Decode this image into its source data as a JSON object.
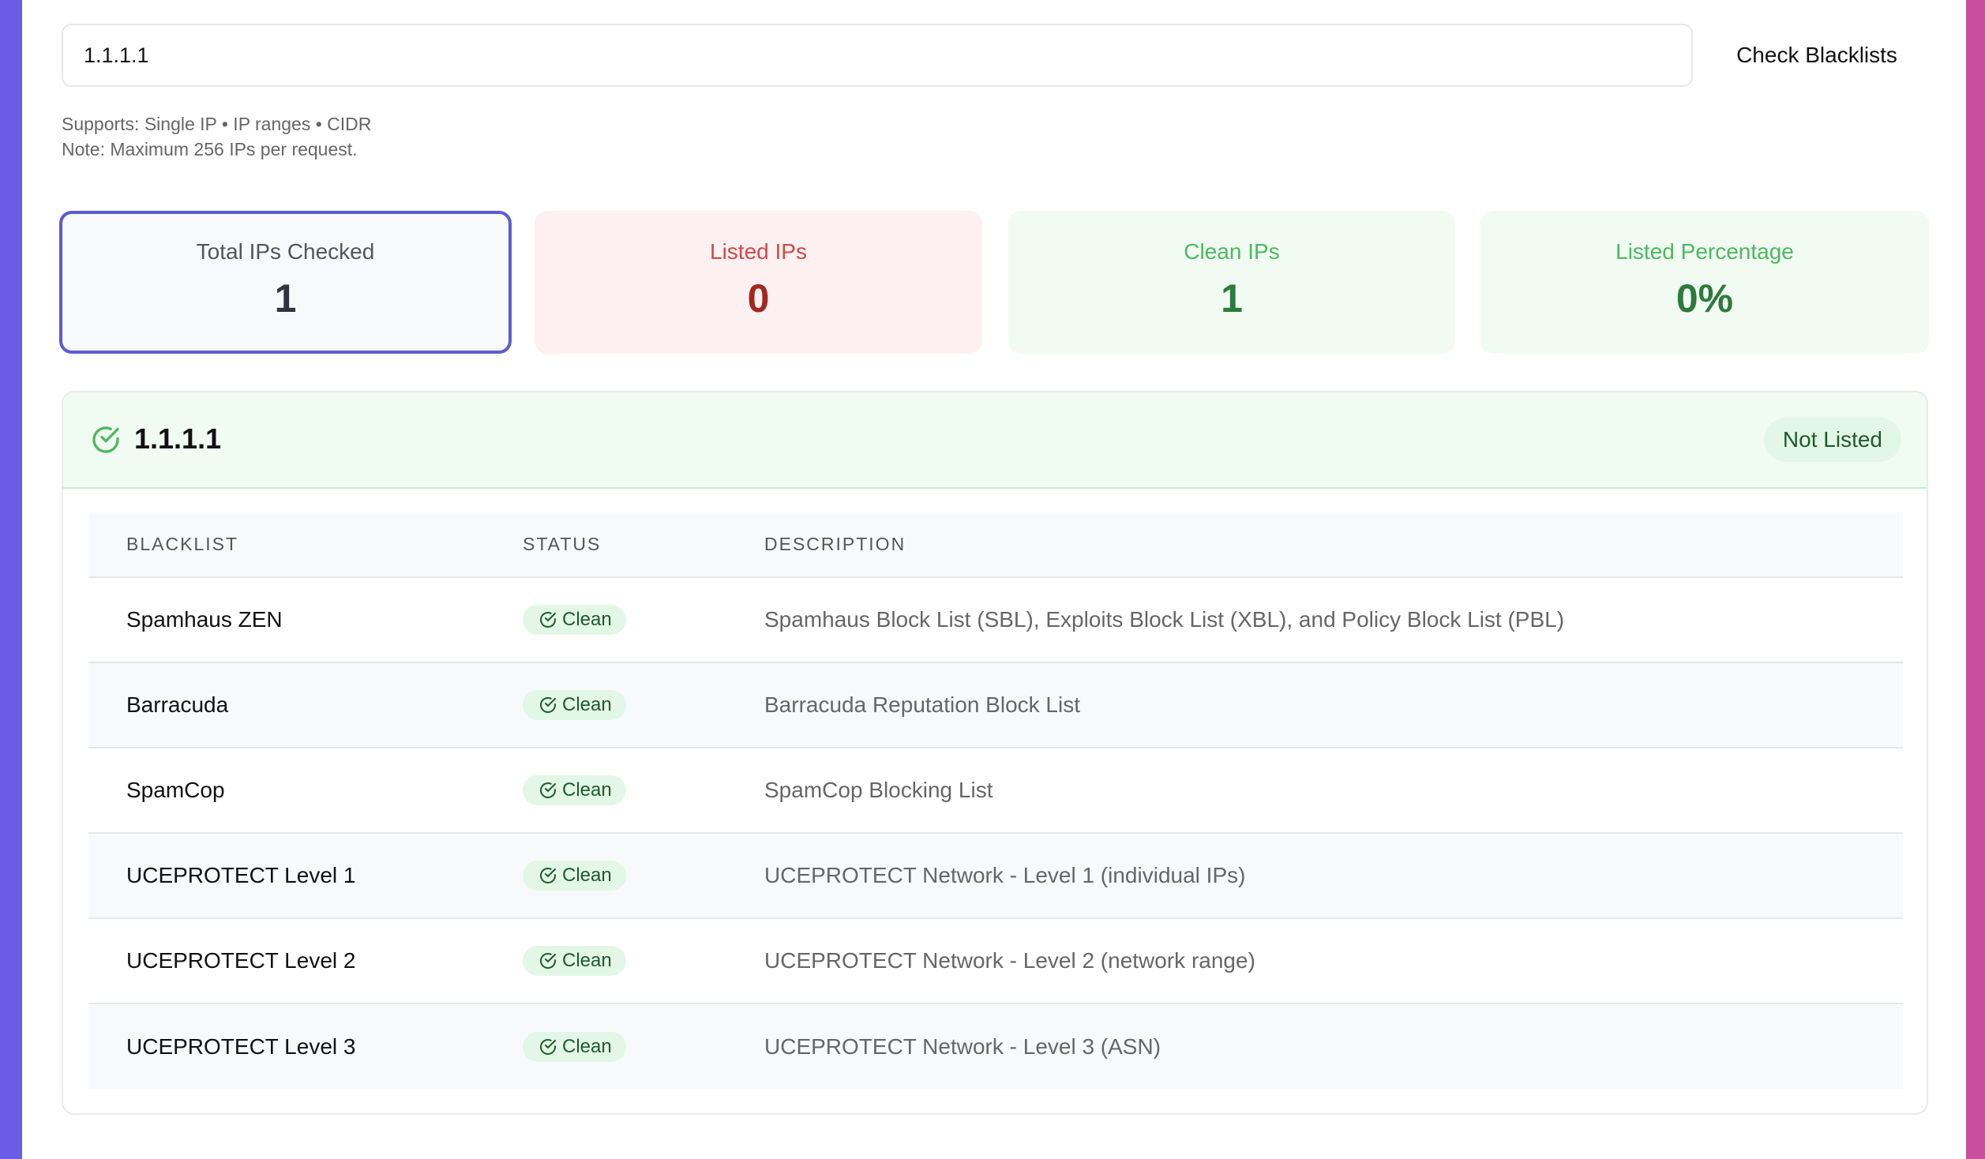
{
  "search": {
    "value": "1.1.1.1",
    "button": "Check Blacklists",
    "supports": "Supports: Single IP • IP ranges • CIDR",
    "note": "Note: Maximum 256 IPs per request."
  },
  "stats": [
    {
      "label": "Total IPs Checked",
      "value": "1"
    },
    {
      "label": "Listed IPs",
      "value": "0"
    },
    {
      "label": "Clean IPs",
      "value": "1"
    },
    {
      "label": "Listed Percentage",
      "value": "0%"
    }
  ],
  "result": {
    "ip": "1.1.1.1",
    "status": "Not Listed",
    "icon": "check-circle-icon",
    "columns": [
      "BLACKLIST",
      "STATUS",
      "DESCRIPTION"
    ],
    "rows": [
      {
        "name": "Spamhaus ZEN",
        "status": "Clean",
        "description": "Spamhaus Block List (SBL), Exploits Block List (XBL), and Policy Block List (PBL)"
      },
      {
        "name": "Barracuda",
        "status": "Clean",
        "description": "Barracuda Reputation Block List"
      },
      {
        "name": "SpamCop",
        "status": "Clean",
        "description": "SpamCop Blocking List"
      },
      {
        "name": "UCEPROTECT Level 1",
        "status": "Clean",
        "description": "UCEPROTECT Network - Level 1 (individual IPs)"
      },
      {
        "name": "UCEPROTECT Level 2",
        "status": "Clean",
        "description": "UCEPROTECT Network - Level 2 (network range)"
      },
      {
        "name": "UCEPROTECT Level 3",
        "status": "Clean",
        "description": "UCEPROTECT Network - Level 3 (ASN)"
      }
    ]
  },
  "colors": {
    "accent": "#5b5bd6",
    "listed": "#d04848",
    "clean": "#4cb860",
    "left_bar": "#6a5ce6",
    "right_bar": "#c94f9e"
  }
}
